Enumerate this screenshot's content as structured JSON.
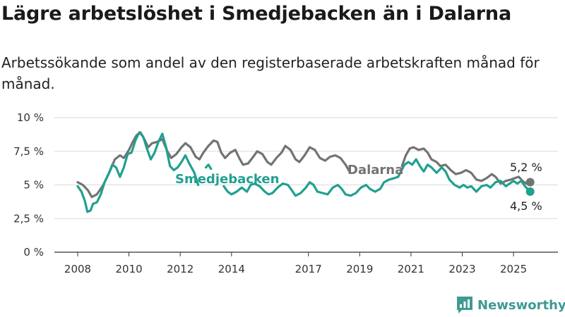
{
  "title": "Lägre arbetslöshet i Smedjebacken än i Dalarna",
  "subtitle": "Arbetssökande som andel av den registerbaserade arbetskraften månad för månad.",
  "brand": {
    "name": "Newsworthy",
    "icon": "newsworthy-logo-icon",
    "color": "#3f9a92"
  },
  "chart_data": {
    "type": "line",
    "ylim": [
      0,
      10
    ],
    "xlim": [
      2007.5,
      2026.3
    ],
    "yticks": [
      0,
      2.5,
      5,
      7.5,
      10
    ],
    "ytick_labels": [
      "0 %",
      "2,5 %",
      "5 %",
      "7,5 %",
      "10 %"
    ],
    "xticks": [
      2008,
      2010,
      2012,
      2014,
      2017,
      2019,
      2021,
      2023,
      2025
    ],
    "xtick_labels": [
      "2008",
      "2010",
      "2012",
      "2014",
      "2017",
      "2019",
      "2021",
      "2023",
      "2025"
    ],
    "grid": true,
    "series": [
      {
        "name": "Dalarna",
        "color": "#737373",
        "end_label": "5,2 %",
        "points": [
          [
            2008.0,
            5.2
          ],
          [
            2008.2,
            5.0
          ],
          [
            2008.4,
            4.6
          ],
          [
            2008.55,
            4.1
          ],
          [
            2008.75,
            4.3
          ],
          [
            2009.0,
            5.0
          ],
          [
            2009.25,
            6.0
          ],
          [
            2009.45,
            6.9
          ],
          [
            2009.65,
            7.2
          ],
          [
            2009.8,
            7.0
          ],
          [
            2010.0,
            7.6
          ],
          [
            2010.15,
            8.2
          ],
          [
            2010.3,
            8.7
          ],
          [
            2010.45,
            8.9
          ],
          [
            2010.6,
            8.4
          ],
          [
            2010.75,
            7.8
          ],
          [
            2010.9,
            8.1
          ],
          [
            2011.1,
            8.2
          ],
          [
            2011.3,
            8.4
          ],
          [
            2011.5,
            7.5
          ],
          [
            2011.65,
            7.0
          ],
          [
            2011.85,
            7.3
          ],
          [
            2012.05,
            7.8
          ],
          [
            2012.2,
            8.1
          ],
          [
            2012.4,
            7.8
          ],
          [
            2012.6,
            7.1
          ],
          [
            2012.75,
            6.9
          ],
          [
            2012.9,
            7.4
          ],
          [
            2013.1,
            7.9
          ],
          [
            2013.3,
            8.3
          ],
          [
            2013.45,
            8.2
          ],
          [
            2013.6,
            7.4
          ],
          [
            2013.75,
            7.0
          ],
          [
            2013.95,
            7.4
          ],
          [
            2014.15,
            7.6
          ],
          [
            2014.3,
            7.0
          ],
          [
            2014.45,
            6.5
          ],
          [
            2014.65,
            6.6
          ],
          [
            2014.85,
            7.1
          ],
          [
            2015.0,
            7.5
          ],
          [
            2015.2,
            7.3
          ],
          [
            2015.4,
            6.7
          ],
          [
            2015.55,
            6.5
          ],
          [
            2015.75,
            7.0
          ],
          [
            2015.95,
            7.4
          ],
          [
            2016.1,
            7.9
          ],
          [
            2016.3,
            7.6
          ],
          [
            2016.5,
            6.9
          ],
          [
            2016.65,
            6.7
          ],
          [
            2016.85,
            7.2
          ],
          [
            2017.05,
            7.8
          ],
          [
            2017.25,
            7.6
          ],
          [
            2017.45,
            7.0
          ],
          [
            2017.65,
            6.8
          ],
          [
            2017.85,
            7.1
          ],
          [
            2018.05,
            7.2
          ],
          [
            2018.25,
            7.0
          ],
          [
            2018.45,
            6.5
          ],
          [
            2018.6,
            6.0
          ]
        ],
        "points_late": [
          [
            2020.65,
            6.4
          ],
          [
            2020.8,
            7.2
          ],
          [
            2020.95,
            7.7
          ],
          [
            2021.1,
            7.8
          ],
          [
            2021.3,
            7.6
          ],
          [
            2021.5,
            7.7
          ],
          [
            2021.65,
            7.4
          ],
          [
            2021.8,
            6.9
          ],
          [
            2022.0,
            6.7
          ],
          [
            2022.15,
            6.4
          ],
          [
            2022.35,
            6.5
          ],
          [
            2022.55,
            6.1
          ],
          [
            2022.75,
            5.8
          ],
          [
            2022.95,
            5.9
          ],
          [
            2023.15,
            6.1
          ],
          [
            2023.35,
            5.9
          ],
          [
            2023.55,
            5.4
          ],
          [
            2023.75,
            5.3
          ],
          [
            2023.95,
            5.5
          ],
          [
            2024.15,
            5.8
          ],
          [
            2024.3,
            5.6
          ],
          [
            2024.5,
            5.1
          ],
          [
            2024.7,
            5.3
          ],
          [
            2024.9,
            5.4
          ],
          [
            2025.05,
            5.5
          ],
          [
            2025.2,
            5.6
          ],
          [
            2025.35,
            5.3
          ],
          [
            2025.5,
            5.1
          ],
          [
            2025.65,
            5.2
          ]
        ]
      },
      {
        "name": "Smedjebacken",
        "color": "#20a090",
        "end_label": "4,5 %",
        "points": [
          [
            2008.0,
            4.9
          ],
          [
            2008.15,
            4.5
          ],
          [
            2008.28,
            3.8
          ],
          [
            2008.38,
            3.0
          ],
          [
            2008.5,
            3.1
          ],
          [
            2008.6,
            3.6
          ],
          [
            2008.75,
            3.7
          ],
          [
            2008.9,
            4.3
          ],
          [
            2009.05,
            5.2
          ],
          [
            2009.2,
            5.8
          ],
          [
            2009.35,
            6.5
          ],
          [
            2009.5,
            6.3
          ],
          [
            2009.65,
            5.6
          ],
          [
            2009.8,
            6.3
          ],
          [
            2009.95,
            7.3
          ],
          [
            2010.1,
            7.4
          ],
          [
            2010.25,
            8.3
          ],
          [
            2010.4,
            8.9
          ],
          [
            2010.55,
            8.6
          ],
          [
            2010.7,
            7.7
          ],
          [
            2010.85,
            6.9
          ],
          [
            2011.0,
            7.4
          ],
          [
            2011.15,
            8.2
          ],
          [
            2011.3,
            8.8
          ],
          [
            2011.45,
            7.8
          ],
          [
            2011.6,
            6.4
          ],
          [
            2011.75,
            6.1
          ],
          [
            2011.9,
            6.3
          ],
          [
            2012.05,
            6.7
          ],
          [
            2012.2,
            7.2
          ],
          [
            2012.35,
            6.6
          ],
          [
            2012.55,
            5.9
          ],
          [
            2012.7,
            5.0
          ]
        ],
        "points_mid": [
          [
            2013.0,
            6.3
          ],
          [
            2013.1,
            6.5
          ],
          [
            2013.2,
            6.2
          ]
        ],
        "points_late": [
          [
            2013.7,
            4.9
          ],
          [
            2013.85,
            4.5
          ],
          [
            2014.0,
            4.3
          ],
          [
            2014.2,
            4.5
          ],
          [
            2014.4,
            4.8
          ],
          [
            2014.6,
            4.5
          ],
          [
            2014.75,
            5.0
          ],
          [
            2014.9,
            5.1
          ],
          [
            2015.1,
            4.9
          ],
          [
            2015.3,
            4.5
          ],
          [
            2015.45,
            4.3
          ],
          [
            2015.6,
            4.4
          ],
          [
            2015.8,
            4.8
          ],
          [
            2016.0,
            5.1
          ],
          [
            2016.2,
            5.0
          ],
          [
            2016.35,
            4.6
          ],
          [
            2016.5,
            4.2
          ],
          [
            2016.7,
            4.4
          ],
          [
            2016.9,
            4.8
          ],
          [
            2017.05,
            5.2
          ],
          [
            2017.2,
            5.0
          ],
          [
            2017.35,
            4.5
          ],
          [
            2017.55,
            4.4
          ],
          [
            2017.75,
            4.3
          ],
          [
            2017.95,
            4.8
          ],
          [
            2018.15,
            5.0
          ],
          [
            2018.3,
            4.7
          ],
          [
            2018.45,
            4.3
          ],
          [
            2018.65,
            4.2
          ],
          [
            2018.85,
            4.4
          ],
          [
            2019.05,
            4.8
          ],
          [
            2019.25,
            5.0
          ],
          [
            2019.4,
            4.7
          ],
          [
            2019.6,
            4.5
          ],
          [
            2019.8,
            4.7
          ],
          [
            2019.95,
            5.2
          ],
          [
            2020.15,
            5.4
          ],
          [
            2020.35,
            5.5
          ],
          [
            2020.5,
            5.6
          ],
          [
            2020.75,
            6.5
          ],
          [
            2020.9,
            6.7
          ],
          [
            2021.05,
            6.5
          ],
          [
            2021.2,
            6.9
          ],
          [
            2021.35,
            6.4
          ],
          [
            2021.5,
            6.0
          ],
          [
            2021.65,
            6.5
          ],
          [
            2021.8,
            6.3
          ],
          [
            2022.0,
            5.9
          ],
          [
            2022.2,
            6.3
          ],
          [
            2022.35,
            6.0
          ],
          [
            2022.5,
            5.4
          ],
          [
            2022.7,
            5.0
          ],
          [
            2022.9,
            4.8
          ],
          [
            2023.05,
            5.0
          ],
          [
            2023.2,
            4.8
          ],
          [
            2023.35,
            4.9
          ],
          [
            2023.55,
            4.5
          ],
          [
            2023.75,
            4.9
          ],
          [
            2023.95,
            5.0
          ],
          [
            2024.1,
            4.8
          ],
          [
            2024.3,
            5.2
          ],
          [
            2024.5,
            5.3
          ],
          [
            2024.7,
            4.9
          ],
          [
            2024.85,
            5.1
          ],
          [
            2025.0,
            5.3
          ],
          [
            2025.15,
            5.1
          ],
          [
            2025.3,
            5.3
          ],
          [
            2025.45,
            4.9
          ],
          [
            2025.65,
            4.5
          ]
        ]
      }
    ]
  }
}
